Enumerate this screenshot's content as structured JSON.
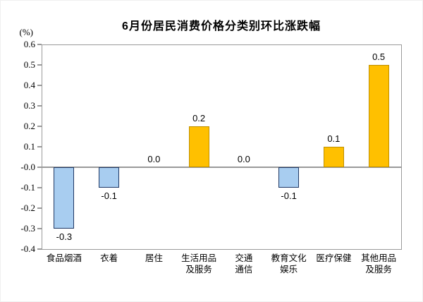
{
  "chart_data": {
    "type": "bar",
    "title": "6月份居民消费价格分类别环比涨跌幅",
    "unit_label": "(%)",
    "categories": [
      "食品烟酒",
      "衣着",
      "居住",
      "生活用品及服务",
      "交通通信",
      "教育文化娱乐",
      "医疗保健",
      "其他用品及服务"
    ],
    "category_lines": [
      [
        "食品烟酒"
      ],
      [
        "衣着"
      ],
      [
        "居住"
      ],
      [
        "生活用品",
        "及服务"
      ],
      [
        "交通",
        "通信"
      ],
      [
        "教育文化",
        "娱乐"
      ],
      [
        "医疗保健"
      ],
      [
        "其他用品",
        "及服务"
      ]
    ],
    "values": [
      -0.3,
      -0.1,
      0.0,
      0.2,
      0.0,
      -0.1,
      0.1,
      0.5
    ],
    "ylim": [
      -0.4,
      0.6
    ],
    "ytick_step": 0.1,
    "xlabel": "",
    "ylabel": "(%)",
    "grid": false,
    "legend_position": "none",
    "colors": {
      "positive_fill": "#FFC000",
      "positive_border": "#BF8F00",
      "negative_fill": "#A8CDF0",
      "negative_border": "#1F3864",
      "axis": "#9A9A9A",
      "text": "#000000"
    }
  }
}
